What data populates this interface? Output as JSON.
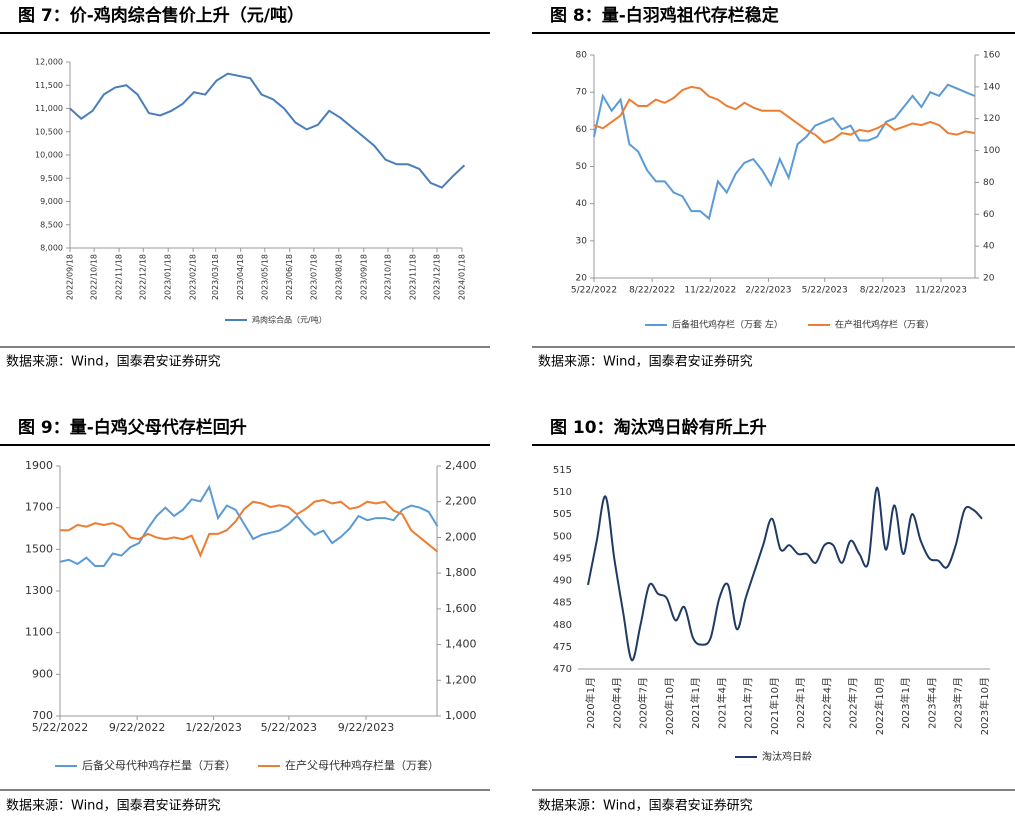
{
  "chart_data": [
    {
      "type": "line",
      "title": "图 7：价-鸡肉综合售价上升（元/吨）",
      "source": "数据来源：Wind，国泰君安证券研究",
      "x": [
        "2022/09/18",
        "2022/10/02",
        "2022/10/16",
        "2022/10/30",
        "2022/11/13",
        "2022/11/27",
        "2022/12/11",
        "2022/12/25",
        "2023/01/08",
        "2023/01/22",
        "2023/02/05",
        "2023/02/19",
        "2023/03/05",
        "2023/03/19",
        "2023/04/02",
        "2023/04/16",
        "2023/04/30",
        "2023/05/14",
        "2023/05/28",
        "2023/06/11",
        "2023/06/25",
        "2023/07/09",
        "2023/07/23",
        "2023/08/06",
        "2023/08/20",
        "2023/09/03",
        "2023/09/17",
        "2023/10/01",
        "2023/10/15",
        "2023/10/29",
        "2023/11/12",
        "2023/11/26",
        "2023/12/10",
        "2023/12/24",
        "2024/01/07",
        "2024/01/21"
      ],
      "xticks": [
        "2022/09/18",
        "2022/10/18",
        "2022/11/18",
        "2022/12/18",
        "2023/01/18",
        "2023/02/18",
        "2023/03/18",
        "2023/04/18",
        "2023/05/18",
        "2023/06/18",
        "2023/07/18",
        "2023/08/18",
        "2023/09/18",
        "2023/10/18",
        "2023/11/18",
        "2023/12/18",
        "2024/01/18"
      ],
      "ylim": [
        8000,
        12000
      ],
      "yticks": [
        {
          "value": 8000,
          "label": "8,000"
        },
        {
          "value": 8500,
          "label": "8,500"
        },
        {
          "value": 9000,
          "label": "9,000"
        },
        {
          "value": 9500,
          "label": "9,500"
        },
        {
          "value": 10000,
          "label": "10,000"
        },
        {
          "value": 10500,
          "label": "10,500"
        },
        {
          "value": 11000,
          "label": "11,000"
        },
        {
          "value": 11500,
          "label": "11,500"
        },
        {
          "value": 12000,
          "label": "12,000"
        }
      ],
      "series": [
        {
          "name": "鸡肉综合品（元/吨）",
          "color": "#4a7ebb",
          "values": [
            11000,
            10780,
            10950,
            11300,
            11450,
            11500,
            11300,
            10900,
            10850,
            10950,
            11100,
            11350,
            11300,
            11600,
            11750,
            11700,
            11650,
            11300,
            11200,
            11000,
            10700,
            10550,
            10650,
            10950,
            10800,
            10600,
            10400,
            10200,
            9900,
            9800,
            9800,
            9700,
            9400,
            9300,
            9550,
            9780
          ]
        }
      ]
    },
    {
      "type": "line",
      "title": "图 8：量-白羽鸡祖代存栏稳定",
      "source": "数据来源：Wind，国泰君安证券研究",
      "x": [
        "5/22/2022",
        "6/5/2022",
        "6/19/2022",
        "7/3/2022",
        "7/17/2022",
        "7/31/2022",
        "8/14/2022",
        "8/28/2022",
        "9/11/2022",
        "9/25/2022",
        "10/9/2022",
        "10/23/2022",
        "11/6/2022",
        "11/20/2022",
        "12/4/2022",
        "12/18/2022",
        "1/1/2023",
        "1/15/2023",
        "1/29/2023",
        "2/12/2023",
        "2/26/2023",
        "3/12/2023",
        "3/26/2023",
        "4/9/2023",
        "4/23/2023",
        "5/7/2023",
        "5/21/2023",
        "6/4/2023",
        "6/18/2023",
        "7/2/2023",
        "7/16/2023",
        "7/30/2023",
        "8/13/2023",
        "8/27/2023",
        "9/10/2023",
        "9/24/2023",
        "10/8/2023",
        "10/22/2023",
        "11/5/2023",
        "11/19/2023",
        "12/3/2023",
        "12/17/2023",
        "12/31/2023",
        "1/14/2024"
      ],
      "xticks": [
        "5/22/2022",
        "8/22/2022",
        "11/22/2022",
        "2/22/2023",
        "5/22/2023",
        "8/22/2023",
        "11/22/2023"
      ],
      "ylim": [
        20,
        80
      ],
      "yticks": [
        20,
        30,
        40,
        50,
        60,
        70,
        80
      ],
      "y2lim": [
        20,
        160
      ],
      "y2ticks": [
        20,
        40,
        60,
        80,
        100,
        120,
        140,
        160
      ],
      "series": [
        {
          "name": "后备祖代鸡存栏（万套 左）",
          "color": "#5b9bd5",
          "values": [
            58,
            69,
            65,
            68,
            56,
            54,
            49,
            46,
            46,
            43,
            42,
            38,
            38,
            36,
            46,
            43,
            48,
            51,
            52,
            49,
            45,
            52,
            47,
            56,
            58,
            61,
            62,
            63,
            60,
            61,
            57,
            57,
            58,
            62,
            63,
            66,
            69,
            66,
            70,
            69,
            72,
            71,
            70,
            69
          ]
        },
        {
          "name": "在产祖代鸡存栏（万套）",
          "color": "#ed7d31",
          "axis": "y2",
          "values": [
            116,
            114,
            118,
            122,
            132,
            128,
            128,
            132,
            130,
            133,
            138,
            140,
            139,
            134,
            132,
            128,
            126,
            130,
            127,
            125,
            125,
            125,
            121,
            117,
            113,
            110,
            105,
            107,
            111,
            110,
            113,
            112,
            114,
            117,
            113,
            115,
            117,
            116,
            118,
            116,
            111,
            110,
            112,
            111
          ]
        }
      ]
    },
    {
      "type": "line",
      "title": "图 9：量-白鸡父母代存栏回升",
      "source": "数据来源：Wind，国泰君安证券研究",
      "x": [
        "5/22/2022",
        "6/5/2022",
        "6/19/2022",
        "7/3/2022",
        "7/17/2022",
        "7/31/2022",
        "8/14/2022",
        "8/28/2022",
        "9/11/2022",
        "9/25/2022",
        "10/9/2022",
        "10/23/2022",
        "11/6/2022",
        "11/20/2022",
        "12/4/2022",
        "12/18/2022",
        "1/1/2023",
        "1/15/2023",
        "1/29/2023",
        "2/12/2023",
        "2/26/2023",
        "3/12/2023",
        "3/26/2023",
        "4/9/2023",
        "4/23/2023",
        "5/7/2023",
        "5/21/2023",
        "6/4/2023",
        "6/18/2023",
        "7/2/2023",
        "7/16/2023",
        "7/30/2023",
        "8/13/2023",
        "8/27/2023",
        "9/10/2023",
        "9/24/2023",
        "10/8/2023",
        "10/22/2023",
        "11/5/2023",
        "11/19/2023",
        "12/3/2023",
        "12/17/2023",
        "12/31/2023",
        "1/14/2024"
      ],
      "xticks": [
        "5/22/2022",
        "9/22/2022",
        "1/22/2023",
        "5/22/2023",
        "9/22/2023"
      ],
      "ylim": [
        700,
        1900
      ],
      "yticks": [
        700,
        900,
        1100,
        1300,
        1500,
        1700,
        1900
      ],
      "y2lim": [
        1000,
        2400
      ],
      "y2ticks": [
        {
          "value": 1000,
          "label": "1,000"
        },
        {
          "value": 1200,
          "label": "1,200"
        },
        {
          "value": 1400,
          "label": "1,400"
        },
        {
          "value": 1600,
          "label": "1,600"
        },
        {
          "value": 1800,
          "label": "1,800"
        },
        {
          "value": 2000,
          "label": "2,000"
        },
        {
          "value": 2200,
          "label": "2,200"
        },
        {
          "value": 2400,
          "label": "2,400"
        }
      ],
      "series": [
        {
          "name": "后备父母代种鸡存栏量（万套）",
          "color": "#5b9bd5",
          "values": [
            1440,
            1450,
            1430,
            1460,
            1420,
            1420,
            1480,
            1470,
            1510,
            1530,
            1600,
            1660,
            1700,
            1660,
            1690,
            1740,
            1730,
            1800,
            1650,
            1710,
            1690,
            1620,
            1550,
            1570,
            1580,
            1590,
            1620,
            1660,
            1610,
            1570,
            1590,
            1530,
            1560,
            1600,
            1660,
            1640,
            1650,
            1650,
            1640,
            1690,
            1710,
            1700,
            1680,
            1610
          ]
        },
        {
          "name": "在产父母代种鸡存栏量（万套）",
          "color": "#ed7d31",
          "axis": "y2",
          "values": [
            2040,
            2040,
            2070,
            2060,
            2080,
            2070,
            2080,
            2060,
            2000,
            1990,
            2020,
            2000,
            1990,
            2000,
            1990,
            2010,
            1900,
            2020,
            2020,
            2040,
            2090,
            2160,
            2200,
            2190,
            2170,
            2180,
            2170,
            2130,
            2160,
            2200,
            2210,
            2190,
            2200,
            2160,
            2170,
            2200,
            2190,
            2200,
            2150,
            2130,
            2040,
            2000,
            1960,
            1920
          ]
        }
      ]
    },
    {
      "type": "line",
      "title": "图 10：淘汰鸡日龄有所上升",
      "source": "数据来源：Wind，国泰君安证券研究",
      "smooth": true,
      "categories": [
        "2020年1月",
        null,
        null,
        "2020年4月",
        null,
        null,
        "2020年7月",
        null,
        null,
        "2020年10月",
        null,
        null,
        "2021年1月",
        null,
        null,
        "2021年4月",
        null,
        null,
        "2021年7月",
        null,
        null,
        "2021年10月",
        null,
        null,
        "2022年1月",
        null,
        null,
        "2022年4月",
        null,
        null,
        "2022年7月",
        null,
        null,
        "2022年10月",
        null,
        null,
        "2023年1月",
        null,
        null,
        "2023年4月",
        null,
        null,
        "2023年7月",
        null,
        null,
        "2023年10月"
      ],
      "ylim": [
        470,
        515
      ],
      "yticks": [
        470,
        475,
        480,
        485,
        490,
        495,
        500,
        505,
        510,
        515
      ],
      "series": [
        {
          "name": "淘汰鸡日龄",
          "color": "#1f3b63",
          "values": [
            489,
            499,
            509,
            495,
            483,
            472,
            480,
            489,
            487,
            486,
            481,
            484,
            477,
            475.5,
            477,
            486,
            489,
            479,
            486,
            492,
            498,
            504,
            497,
            498,
            496,
            496,
            494,
            498,
            498,
            494,
            499,
            496,
            494,
            511,
            497,
            507,
            496,
            505,
            499,
            495,
            494.5,
            493,
            498,
            506,
            506,
            504
          ]
        }
      ]
    }
  ]
}
